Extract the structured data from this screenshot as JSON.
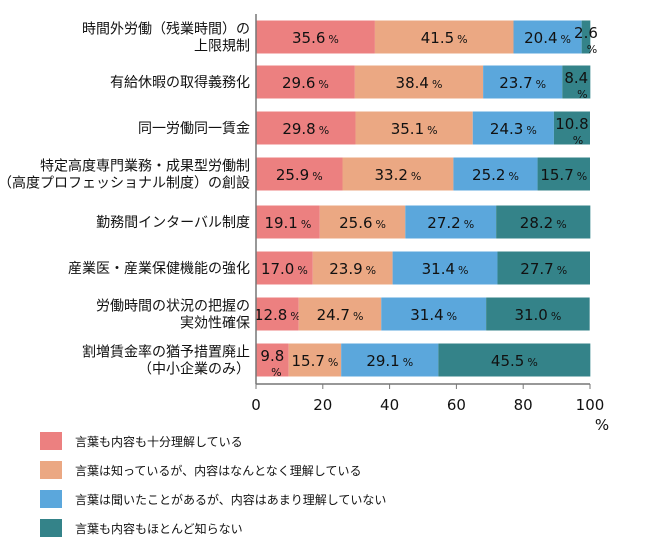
{
  "chart_data": {
    "type": "bar",
    "orientation": "horizontal",
    "stacked": true,
    "categories": [
      [
        "時間外労働（残業時間）の",
        "上限規制"
      ],
      [
        "有給休暇の取得義務化"
      ],
      [
        "同一労働同一賃金"
      ],
      [
        "特定高度専門業務・成果型労働制",
        "（高度プロフェッショナル制度）の創設"
      ],
      [
        "勤務間インターバル制度"
      ],
      [
        "産業医・産業保健機能の強化"
      ],
      [
        "労働時間の状況の把握の",
        "実効性確保"
      ],
      [
        "割増賃金率の猶予措置廃止",
        "（中小企業のみ）"
      ]
    ],
    "series": [
      {
        "name": "言葉も内容も十分理解している",
        "color": "#EC8080",
        "values": [
          35.6,
          29.6,
          29.8,
          25.9,
          19.1,
          17.0,
          12.8,
          9.8
        ]
      },
      {
        "name": "言葉は知っているが、内容はなんとなく理解している",
        "color": "#EBA883",
        "values": [
          41.5,
          38.4,
          35.1,
          33.2,
          25.6,
          23.9,
          24.7,
          15.7
        ]
      },
      {
        "name": "言葉は聞いたことがあるが、内容はあまり理解していない",
        "color": "#5BA7DC",
        "values": [
          20.4,
          23.7,
          24.3,
          25.2,
          27.2,
          31.4,
          31.4,
          29.1
        ]
      },
      {
        "name": "言葉も内容もほとんど知らない",
        "color": "#348389",
        "values": [
          2.6,
          8.4,
          10.8,
          15.7,
          28.2,
          27.7,
          31.0,
          45.5
        ]
      }
    ],
    "value_suffix": "%",
    "xlim": [
      0,
      100
    ],
    "xticks": [
      "0",
      "20",
      "40",
      "60",
      "80",
      "100"
    ],
    "xunit": "%",
    "grid": false,
    "legend_position": "bottom-left"
  }
}
